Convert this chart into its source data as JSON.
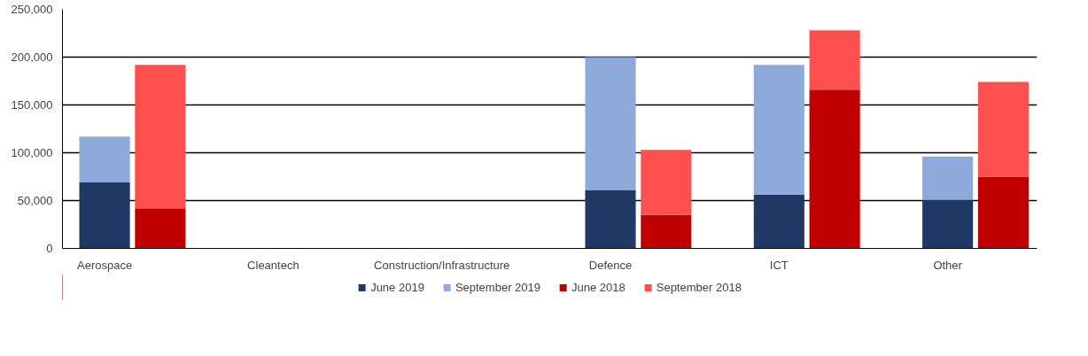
{
  "chart_data": {
    "type": "bar",
    "stacked": true,
    "categories": [
      "Aerospace",
      null,
      "Cleantech",
      null,
      "Construction/Infrastructure",
      null,
      "Defence",
      null,
      "ICT",
      null,
      "Other",
      null
    ],
    "series": [
      {
        "name": "June 2019",
        "color": "#1f3864",
        "values": [
          69000,
          null,
          null,
          null,
          null,
          null,
          61000,
          null,
          56000,
          null,
          51000,
          null
        ]
      },
      {
        "name": "September 2019",
        "color": "#8eaadb",
        "values": [
          48000,
          null,
          null,
          null,
          null,
          null,
          139000,
          null,
          136000,
          null,
          45000,
          null
        ]
      },
      {
        "name": "June 2018",
        "color": "#c00000",
        "values": [
          null,
          42000,
          null,
          null,
          null,
          null,
          null,
          35000,
          null,
          166000,
          null,
          75000
        ]
      },
      {
        "name": "September 2018",
        "color": "#ff5050",
        "values": [
          null,
          150000,
          null,
          null,
          null,
          null,
          null,
          68000,
          null,
          62000,
          null,
          99000
        ]
      }
    ],
    "ylim": [
      0,
      250000
    ],
    "yticks": [
      0,
      {
        "value": 50000,
        "label": "50,000"
      },
      {
        "value": 100000,
        "label": "100,000"
      },
      {
        "value": 150000,
        "label": "150,000"
      },
      {
        "value": 200000,
        "label": "200,000"
      },
      {
        "value": 250000,
        "label": "250,000"
      }
    ],
    "grid": "y",
    "legend": "bottom"
  }
}
